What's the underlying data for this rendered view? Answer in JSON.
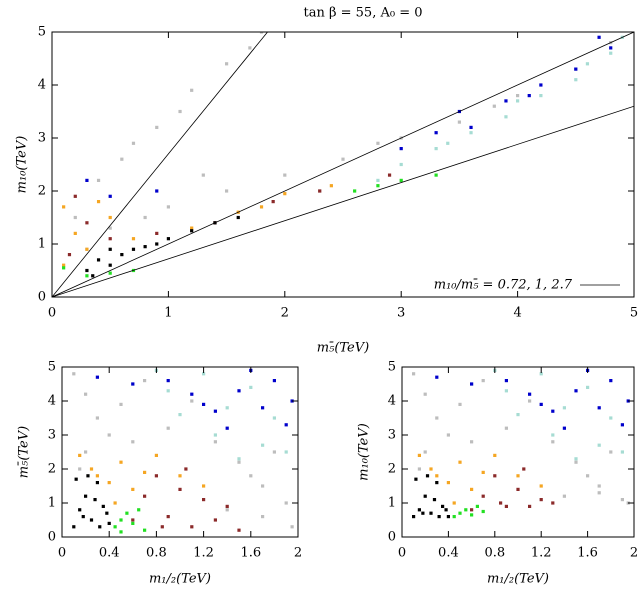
{
  "chart_data": [
    {
      "type": "scatter",
      "title": "tan β = 55, A₀ = 0",
      "xlabel": "m₅̄(TeV)",
      "ylabel": "m₁₀(TeV)",
      "annotation": "m₁₀/m₅̄ = 0.72, 1, 2.7",
      "ratio_lines": [
        0.72,
        1,
        2.7
      ],
      "xlim": [
        0,
        5
      ],
      "ylim": [
        0,
        5
      ],
      "xticks": [
        0,
        1,
        2,
        3,
        4,
        5
      ],
      "yticks": [
        0,
        1,
        2,
        3,
        4,
        5
      ],
      "series": [
        {
          "color": "#bdbdbd",
          "x": [
            0.2,
            0.4,
            0.6,
            0.9,
            1.2,
            1.5,
            1.8,
            0.5,
            1,
            1.5,
            2,
            2.5,
            3,
            3.5,
            4,
            4.5,
            0.8,
            1.3,
            2.3,
            0.3,
            0.7,
            1.1,
            1.7,
            2.8,
            3.8,
            4.8
          ],
          "values": [
            1.5,
            2.2,
            2.6,
            3.2,
            3.9,
            4.4,
            5.0,
            1.3,
            1.7,
            2,
            2.3,
            2.6,
            3,
            3.3,
            3.8,
            4.3,
            1.5,
            2.3,
            2.0,
            0.9,
            2.9,
            3.5,
            4.7,
            2.9,
            3.6,
            4.8
          ]
        },
        {
          "color": "#a6dcd3",
          "x": [
            3,
            3.3,
            3.6,
            3.9,
            4.2,
            4.5,
            4.8,
            2.8,
            4,
            4.6,
            3.4,
            4.9
          ],
          "values": [
            2.5,
            2.8,
            3.1,
            3.4,
            3.8,
            4.1,
            4.6,
            2.2,
            3.7,
            4.4,
            2.9,
            4.9
          ]
        },
        {
          "color": "#0000cc",
          "x": [
            0.3,
            0.5,
            0.9,
            3,
            3.3,
            3.6,
            3.9,
            4.2,
            4.5,
            4.8,
            3.5,
            4.1,
            4.7
          ],
          "values": [
            2.2,
            1.9,
            2.0,
            2.8,
            3.1,
            3.2,
            3.7,
            4.0,
            4.3,
            4.7,
            3.5,
            3.8,
            4.9
          ]
        },
        {
          "color": "#f5a623",
          "x": [
            0.1,
            0.2,
            0.3,
            0.5,
            0.7,
            1.2,
            1.6,
            2,
            2.4,
            0.1,
            0.4,
            1.8
          ],
          "values": [
            1.7,
            1.2,
            0.9,
            1.5,
            1.1,
            1.3,
            1.6,
            1.95,
            2.1,
            0.6,
            1.8,
            1.7
          ]
        },
        {
          "color": "#8b2a2a",
          "x": [
            0.2,
            0.3,
            0.5,
            0.9,
            1.4,
            1.9,
            2.3,
            2.9,
            0.15
          ],
          "values": [
            1.9,
            1.4,
            1.1,
            1.2,
            1.4,
            1.8,
            2.0,
            2.3,
            0.8
          ]
        },
        {
          "color": "#22e022",
          "x": [
            0.1,
            0.3,
            0.5,
            0.7,
            2.6,
            2.8,
            3,
            3.3
          ],
          "values": [
            0.55,
            0.4,
            0.45,
            0.5,
            2.0,
            2.1,
            2.2,
            2.3
          ]
        },
        {
          "color": "#000000",
          "x": [
            0.3,
            0.4,
            0.5,
            0.6,
            0.7,
            0.8,
            0.9,
            1.0,
            1.2,
            1.4,
            1.6,
            0.5,
            0.35
          ],
          "values": [
            0.5,
            0.7,
            0.6,
            0.8,
            0.9,
            0.95,
            1.0,
            1.1,
            1.25,
            1.4,
            1.5,
            0.9,
            0.4
          ]
        }
      ]
    },
    {
      "type": "scatter",
      "xlabel": "m₁/₂(TeV)",
      "ylabel": "m₅̄(TeV)",
      "xlim": [
        0,
        2
      ],
      "ylim": [
        0,
        5
      ],
      "xticks": [
        0,
        0.4,
        0.8,
        1.2,
        1.6,
        2
      ],
      "yticks": [
        0,
        1,
        2,
        3,
        4,
        5
      ],
      "series": [
        {
          "color": "#bdbdbd",
          "x": [
            0.1,
            0.2,
            0.3,
            0.5,
            0.7,
            0.9,
            1.1,
            1.3,
            1.5,
            1.7,
            1.9,
            1.4,
            1.6,
            1.8,
            0.2,
            0.4,
            0.6,
            0.15,
            1.95,
            1.7
          ],
          "values": [
            4.8,
            4.2,
            3.5,
            3.9,
            4.6,
            3.2,
            4.0,
            2.8,
            2.2,
            1.5,
            1.0,
            0.8,
            1.8,
            2.5,
            2.5,
            3.0,
            2.8,
            2.0,
            0.3,
            0.6
          ]
        },
        {
          "color": "#a6dcd3",
          "x": [
            0.6,
            0.9,
            1.2,
            1.4,
            1.6,
            1.8,
            1.9,
            1.3,
            1.0,
            0.8,
            1.7,
            1.5
          ],
          "values": [
            4.5,
            4.3,
            4.8,
            3.8,
            4.4,
            3.5,
            2.5,
            3.0,
            3.6,
            4.9,
            2.7,
            2.3
          ]
        },
        {
          "color": "#0000cc",
          "x": [
            0.3,
            0.6,
            0.9,
            1.1,
            1.3,
            1.5,
            1.7,
            1.8,
            1.9,
            1.6,
            1.4,
            1.2,
            1.95
          ],
          "values": [
            4.7,
            4.5,
            4.6,
            4.2,
            3.7,
            4.3,
            3.8,
            4.6,
            3.3,
            4.9,
            3.2,
            3.9,
            4.0
          ]
        },
        {
          "color": "#f5a623",
          "x": [
            0.15,
            0.25,
            0.4,
            0.5,
            0.6,
            0.8,
            1.0,
            1.2,
            0.45,
            0.7,
            0.3
          ],
          "values": [
            2.4,
            2.0,
            1.6,
            2.2,
            1.4,
            2.4,
            1.8,
            1.5,
            1.0,
            1.9,
            1.8
          ]
        },
        {
          "color": "#8b2a2a",
          "x": [
            0.6,
            0.7,
            0.8,
            0.9,
            1.0,
            1.1,
            1.2,
            1.3,
            1.4,
            1.5,
            0.85,
            1.05
          ],
          "values": [
            0.5,
            1.2,
            1.8,
            0.6,
            1.4,
            0.3,
            1.1,
            0.5,
            0.9,
            0.2,
            0.3,
            2.0
          ]
        },
        {
          "color": "#22e022",
          "x": [
            0.45,
            0.5,
            0.55,
            0.6,
            0.65,
            0.7,
            0.5
          ],
          "values": [
            0.3,
            0.5,
            0.7,
            0.4,
            0.8,
            0.2,
            0.15
          ]
        },
        {
          "color": "#000000",
          "x": [
            0.1,
            0.15,
            0.2,
            0.25,
            0.3,
            0.35,
            0.4,
            0.12,
            0.22,
            0.32,
            0.18,
            0.28,
            0.38
          ],
          "values": [
            0.3,
            0.8,
            1.2,
            0.5,
            1.6,
            0.9,
            0.4,
            1.7,
            1.8,
            0.3,
            0.6,
            1.1,
            0.7
          ]
        }
      ]
    },
    {
      "type": "scatter",
      "xlabel": "m₁/₂(TeV)",
      "ylabel": "m₁₀(TeV)",
      "xlim": [
        0,
        2
      ],
      "ylim": [
        0,
        5
      ],
      "xticks": [
        0,
        0.4,
        0.8,
        1.2,
        1.6,
        2
      ],
      "yticks": [
        0,
        1,
        2,
        3,
        4,
        5
      ],
      "series": [
        {
          "color": "#bdbdbd",
          "x": [
            0.1,
            0.2,
            0.3,
            0.5,
            0.7,
            0.9,
            1.1,
            1.3,
            1.5,
            1.7,
            1.9,
            1.4,
            1.6,
            1.8,
            0.2,
            0.4,
            0.6,
            0.15,
            1.95,
            1.7
          ],
          "values": [
            4.8,
            4.2,
            3.5,
            3.9,
            4.6,
            3.2,
            4.0,
            2.8,
            2.2,
            1.5,
            1.1,
            1.2,
            1.8,
            2.5,
            2.5,
            3.0,
            2.8,
            2.0,
            1.0,
            1.3
          ]
        },
        {
          "color": "#a6dcd3",
          "x": [
            0.6,
            0.9,
            1.2,
            1.4,
            1.6,
            1.8,
            1.9,
            1.3,
            1.0,
            0.8,
            1.7,
            1.5
          ],
          "values": [
            4.5,
            4.3,
            4.8,
            3.8,
            4.4,
            3.5,
            2.5,
            3.0,
            3.6,
            4.9,
            2.7,
            2.3
          ]
        },
        {
          "color": "#0000cc",
          "x": [
            0.3,
            0.6,
            0.9,
            1.1,
            1.3,
            1.5,
            1.7,
            1.8,
            1.9,
            1.6,
            1.4,
            1.2,
            1.95
          ],
          "values": [
            4.7,
            4.5,
            4.6,
            4.2,
            3.7,
            4.3,
            3.8,
            4.6,
            3.3,
            4.9,
            3.2,
            3.9,
            4.0
          ]
        },
        {
          "color": "#f5a623",
          "x": [
            0.15,
            0.25,
            0.4,
            0.5,
            0.6,
            0.8,
            1.0,
            1.2,
            0.45,
            0.7,
            0.3
          ],
          "values": [
            2.4,
            2.0,
            1.6,
            2.2,
            1.4,
            2.4,
            1.8,
            1.5,
            1.0,
            1.9,
            1.8
          ]
        },
        {
          "color": "#8b2a2a",
          "x": [
            0.6,
            0.7,
            0.8,
            0.9,
            1.0,
            1.1,
            1.2,
            1.3,
            0.85,
            1.05
          ],
          "values": [
            0.8,
            1.2,
            1.8,
            0.9,
            1.4,
            0.9,
            1.1,
            1.0,
            1.0,
            2.0
          ]
        },
        {
          "color": "#22e022",
          "x": [
            0.45,
            0.5,
            0.55,
            0.6,
            0.65,
            0.7
          ],
          "values": [
            0.6,
            0.7,
            0.8,
            0.65,
            0.9,
            0.75
          ]
        },
        {
          "color": "#000000",
          "x": [
            0.1,
            0.15,
            0.2,
            0.25,
            0.3,
            0.35,
            0.4,
            0.12,
            0.22,
            0.32,
            0.18,
            0.28,
            0.38
          ],
          "values": [
            0.6,
            0.8,
            1.2,
            0.7,
            1.6,
            0.9,
            0.6,
            1.7,
            1.8,
            0.6,
            0.7,
            1.1,
            0.8
          ]
        }
      ]
    }
  ]
}
